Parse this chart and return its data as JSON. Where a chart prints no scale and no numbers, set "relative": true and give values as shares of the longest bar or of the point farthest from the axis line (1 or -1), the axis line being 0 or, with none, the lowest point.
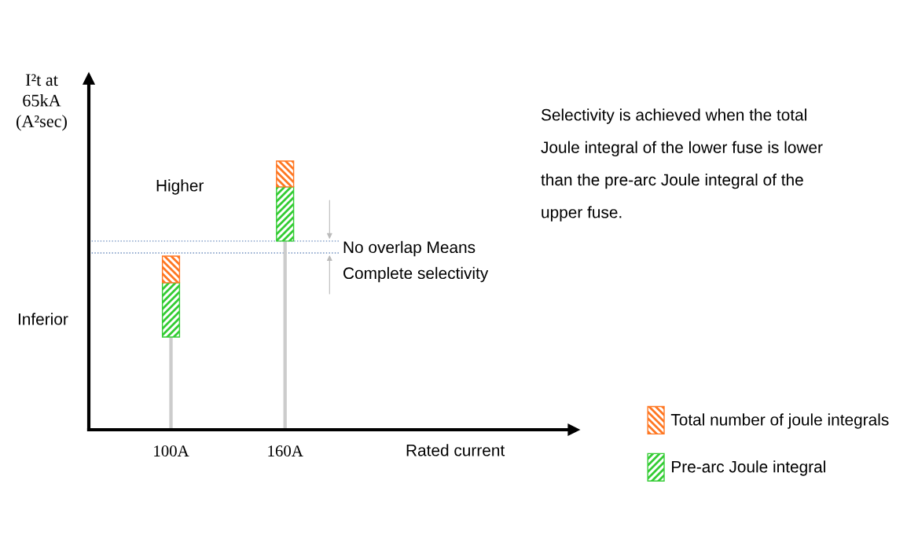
{
  "chart_data": {
    "type": "bar",
    "relative": true,
    "stacked": true,
    "categories": [
      "100A",
      "160A"
    ],
    "series": [
      {
        "color": "#cccccc",
        "values": [
          0.345,
          0.702
        ]
      },
      {
        "name": "Pre-arc Joule integral",
        "color": "#33cc33",
        "values": [
          0.202,
          0.202
        ]
      },
      {
        "name": "Total number of joule integrals",
        "color": "#ff7722",
        "values": [
          0.099,
          0.096
        ]
      }
    ],
    "xlabel": "Rated current",
    "ref_lines": [
      {
        "axis": "y",
        "value": 0.702,
        "color": "#6688bb",
        "line_style": "dotted"
      },
      {
        "axis": "y",
        "value": 0.658,
        "color": "#6688bb",
        "line_style": "dotted"
      }
    ],
    "annotations": [
      "I²t at\n65kA\n(A²sec)",
      "Higher",
      "Inferior",
      "No overlap Means\nComplete selectivity",
      "Selectivity is achieved when the total\nJoule integral of the lower fuse is lower\nthan the pre-arc Joule integral of the\nupper fuse."
    ],
    "legend": "bottom right"
  }
}
